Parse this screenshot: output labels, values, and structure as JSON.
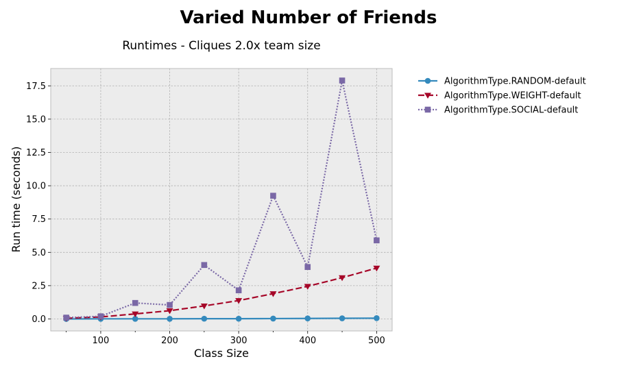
{
  "chart_data": {
    "type": "line",
    "suptitle": "Varied Number of Friends",
    "title": "Runtimes - Cliques 2.0x team size",
    "xlabel": "Class Size",
    "ylabel": "Run time (seconds)",
    "xlim": [
      27.5,
      522.5
    ],
    "ylim": [
      -0.9,
      18.8
    ],
    "xticks": [
      100,
      200,
      300,
      400,
      500
    ],
    "xtick_labels": [
      "100",
      "200",
      "300",
      "400",
      "500"
    ],
    "yticks": [
      0.0,
      2.5,
      5.0,
      7.5,
      10.0,
      12.5,
      15.0,
      17.5
    ],
    "ytick_labels": [
      "0.0",
      "2.5",
      "5.0",
      "7.5",
      "10.0",
      "12.5",
      "15.0",
      "17.5"
    ],
    "grid": true,
    "legend_position": "outside-right-top",
    "x": [
      50,
      100,
      150,
      200,
      250,
      300,
      350,
      400,
      450,
      500
    ],
    "series": [
      {
        "name": "AlgorithmType.RANDOM-default",
        "color": "#348abd",
        "linestyle": "solid",
        "marker": "circle",
        "values": [
          0.0,
          0.01,
          0.01,
          0.01,
          0.02,
          0.02,
          0.03,
          0.04,
          0.05,
          0.06
        ]
      },
      {
        "name": "AlgorithmType.WEIGHT-default",
        "color": "#a60628",
        "linestyle": "dashed",
        "marker": "triangle-down",
        "values": [
          0.05,
          0.15,
          0.38,
          0.62,
          0.98,
          1.38,
          1.9,
          2.45,
          3.1,
          3.82
        ]
      },
      {
        "name": "AlgorithmType.SOCIAL-default",
        "color": "#7a68a6",
        "linestyle": "dotted",
        "marker": "square",
        "values": [
          0.1,
          0.2,
          1.2,
          1.05,
          4.05,
          2.15,
          9.25,
          3.9,
          17.9,
          5.9
        ]
      }
    ]
  }
}
